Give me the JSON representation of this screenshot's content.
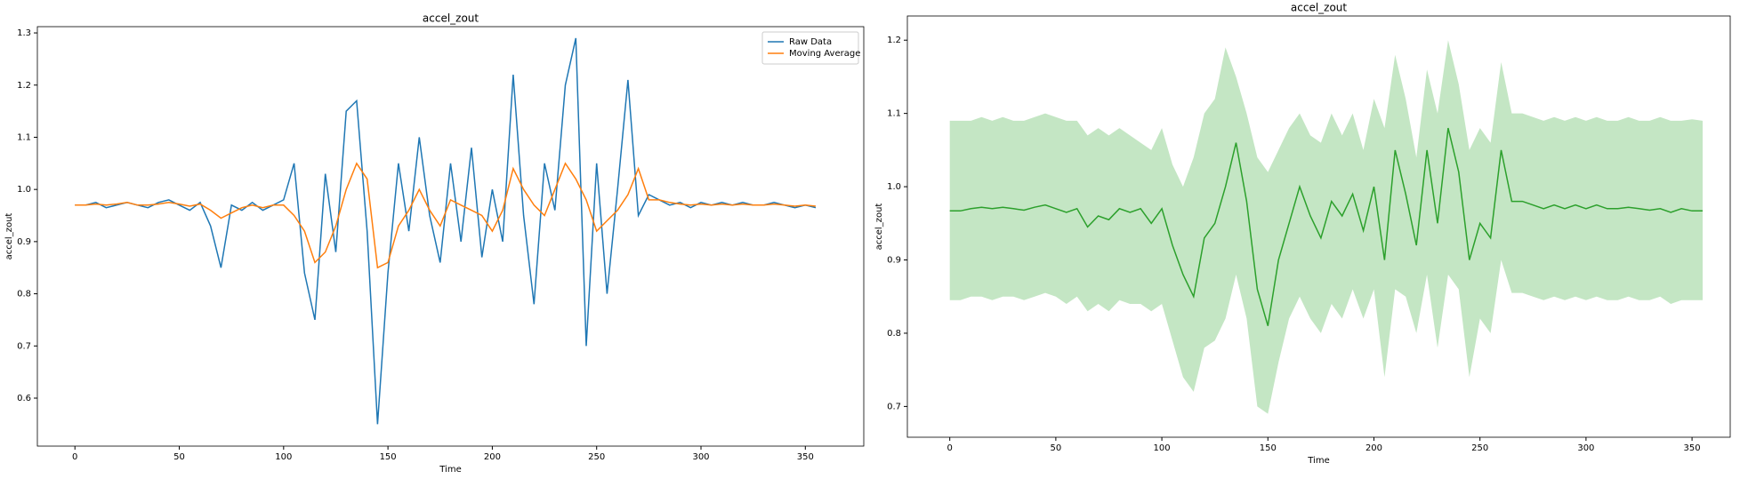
{
  "chart_data": [
    {
      "type": "line",
      "title": "accel_zout",
      "xlabel": "Time",
      "ylabel": "accel_zout",
      "x": [
        0,
        5,
        10,
        15,
        20,
        25,
        30,
        35,
        40,
        45,
        50,
        55,
        60,
        65,
        70,
        75,
        80,
        85,
        90,
        95,
        100,
        105,
        110,
        115,
        120,
        125,
        130,
        135,
        140,
        145,
        150,
        155,
        160,
        165,
        170,
        175,
        180,
        185,
        190,
        195,
        200,
        205,
        210,
        215,
        220,
        225,
        230,
        235,
        240,
        245,
        250,
        255,
        260,
        265,
        270,
        275,
        280,
        285,
        290,
        295,
        300,
        305,
        310,
        315,
        320,
        325,
        330,
        335,
        340,
        345,
        350,
        355
      ],
      "series": [
        {
          "name": "Raw Data",
          "color": "#1f77b4",
          "values": [
            0.97,
            0.97,
            0.975,
            0.965,
            0.97,
            0.975,
            0.97,
            0.965,
            0.975,
            0.98,
            0.97,
            0.96,
            0.975,
            0.93,
            0.85,
            0.97,
            0.96,
            0.975,
            0.96,
            0.97,
            0.98,
            1.05,
            0.84,
            0.75,
            1.03,
            0.88,
            1.15,
            1.17,
            0.92,
            0.55,
            0.84,
            1.05,
            0.92,
            1.1,
            0.95,
            0.86,
            1.05,
            0.9,
            1.08,
            0.87,
            1.0,
            0.9,
            1.22,
            0.95,
            0.78,
            1.05,
            0.96,
            1.2,
            1.29,
            0.7,
            1.05,
            0.8,
            1.0,
            1.21,
            0.95,
            0.99,
            0.98,
            0.97,
            0.975,
            0.965,
            0.975,
            0.97,
            0.975,
            0.97,
            0.975,
            0.97,
            0.97,
            0.975,
            0.97,
            0.965,
            0.97,
            0.965
          ]
        },
        {
          "name": "Moving Average",
          "color": "#ff7f0e",
          "values": [
            0.97,
            0.97,
            0.972,
            0.97,
            0.972,
            0.975,
            0.97,
            0.97,
            0.972,
            0.975,
            0.972,
            0.968,
            0.972,
            0.96,
            0.945,
            0.955,
            0.965,
            0.97,
            0.965,
            0.97,
            0.97,
            0.95,
            0.92,
            0.86,
            0.88,
            0.93,
            1.0,
            1.05,
            1.02,
            0.85,
            0.86,
            0.93,
            0.96,
            1.0,
            0.96,
            0.93,
            0.98,
            0.97,
            0.96,
            0.95,
            0.92,
            0.96,
            1.04,
            1.0,
            0.97,
            0.95,
            1.0,
            1.05,
            1.02,
            0.98,
            0.92,
            0.94,
            0.96,
            0.99,
            1.04,
            0.98,
            0.98,
            0.975,
            0.972,
            0.97,
            0.972,
            0.97,
            0.972,
            0.97,
            0.972,
            0.97,
            0.97,
            0.972,
            0.97,
            0.968,
            0.97,
            0.968
          ]
        }
      ],
      "xlim": [
        -18,
        378
      ],
      "ylim": [
        0.508,
        1.312
      ],
      "xticks": [
        0,
        50,
        100,
        150,
        200,
        250,
        300,
        350
      ],
      "yticks": [
        0.6,
        0.7,
        0.8,
        0.9,
        {
          "value": 1,
          "label": "1.0"
        },
        1.1,
        1.2,
        1.3
      ],
      "legend": "upper right"
    },
    {
      "type": "line",
      "title": "accel_zout",
      "xlabel": "Time",
      "ylabel": "accel_zout",
      "x": [
        0,
        5,
        10,
        15,
        20,
        25,
        30,
        35,
        40,
        45,
        50,
        55,
        60,
        65,
        70,
        75,
        80,
        85,
        90,
        95,
        100,
        105,
        110,
        115,
        120,
        125,
        130,
        135,
        140,
        145,
        150,
        155,
        160,
        165,
        170,
        175,
        180,
        185,
        190,
        195,
        200,
        205,
        210,
        215,
        220,
        225,
        230,
        235,
        240,
        245,
        250,
        255,
        260,
        265,
        270,
        275,
        280,
        285,
        290,
        295,
        300,
        305,
        310,
        315,
        320,
        325,
        330,
        335,
        340,
        345,
        350,
        355
      ],
      "series": [
        {
          "color": "#2ca02c",
          "band_color": "#c4e6c4",
          "values": [
            0.967,
            0.967,
            0.97,
            0.972,
            0.97,
            0.972,
            0.97,
            0.968,
            0.972,
            0.975,
            0.97,
            0.965,
            0.97,
            0.945,
            0.96,
            0.955,
            0.97,
            0.965,
            0.97,
            0.95,
            0.97,
            0.92,
            0.88,
            0.85,
            0.93,
            0.95,
            1.0,
            1.06,
            0.98,
            0.86,
            0.81,
            0.9,
            0.95,
            1.0,
            0.96,
            0.93,
            0.98,
            0.96,
            0.99,
            0.94,
            1.0,
            0.9,
            1.05,
            0.99,
            0.92,
            1.05,
            0.95,
            1.08,
            1.02,
            0.9,
            0.95,
            0.93,
            1.05,
            0.98,
            0.98,
            0.975,
            0.97,
            0.975,
            0.97,
            0.975,
            0.97,
            0.975,
            0.97,
            0.97,
            0.972,
            0.97,
            0.968,
            0.97,
            0.965,
            0.97,
            0.967,
            0.967
          ],
          "upper": [
            1.09,
            1.09,
            1.09,
            1.095,
            1.09,
            1.095,
            1.09,
            1.09,
            1.095,
            1.1,
            1.095,
            1.09,
            1.09,
            1.07,
            1.08,
            1.07,
            1.08,
            1.07,
            1.06,
            1.05,
            1.08,
            1.03,
            1.0,
            1.04,
            1.1,
            1.12,
            1.19,
            1.15,
            1.1,
            1.04,
            1.02,
            1.05,
            1.08,
            1.1,
            1.07,
            1.06,
            1.1,
            1.07,
            1.1,
            1.05,
            1.12,
            1.08,
            1.18,
            1.12,
            1.04,
            1.16,
            1.1,
            1.2,
            1.14,
            1.05,
            1.08,
            1.06,
            1.17,
            1.1,
            1.1,
            1.095,
            1.09,
            1.095,
            1.09,
            1.095,
            1.09,
            1.095,
            1.09,
            1.09,
            1.095,
            1.09,
            1.09,
            1.095,
            1.09,
            1.09,
            1.092,
            1.09
          ],
          "lower": [
            0.845,
            0.845,
            0.85,
            0.85,
            0.845,
            0.85,
            0.85,
            0.845,
            0.85,
            0.855,
            0.85,
            0.84,
            0.85,
            0.83,
            0.84,
            0.83,
            0.845,
            0.84,
            0.84,
            0.83,
            0.84,
            0.79,
            0.74,
            0.72,
            0.78,
            0.79,
            0.82,
            0.88,
            0.82,
            0.7,
            0.69,
            0.76,
            0.82,
            0.85,
            0.82,
            0.8,
            0.84,
            0.82,
            0.86,
            0.82,
            0.86,
            0.74,
            0.86,
            0.85,
            0.8,
            0.88,
            0.78,
            0.88,
            0.86,
            0.74,
            0.82,
            0.8,
            0.9,
            0.855,
            0.855,
            0.85,
            0.845,
            0.85,
            0.845,
            0.85,
            0.845,
            0.85,
            0.845,
            0.845,
            0.85,
            0.845,
            0.845,
            0.85,
            0.84,
            0.845,
            0.845,
            0.845
          ]
        }
      ],
      "xlim": [
        -20,
        368
      ],
      "ylim": [
        0.658,
        1.233
      ],
      "xticks": [
        0,
        50,
        100,
        150,
        200,
        250,
        300,
        350
      ],
      "yticks": [
        0.7,
        0.8,
        0.9,
        {
          "value": 1,
          "label": "1.0"
        },
        1.1,
        1.2
      ]
    }
  ]
}
